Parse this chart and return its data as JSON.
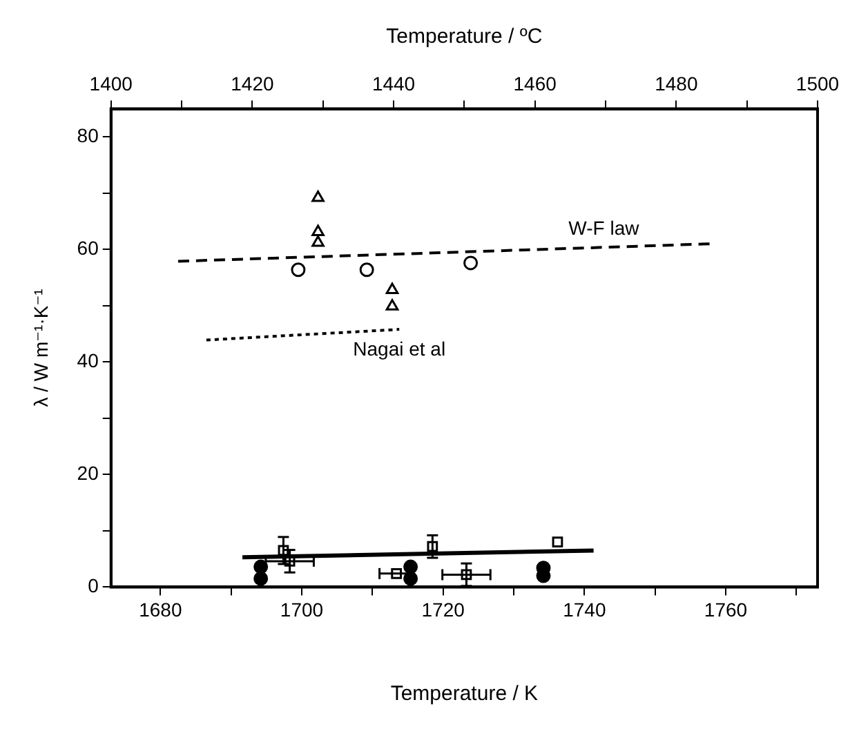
{
  "chart_data": {
    "type": "scatter",
    "xlabel": "Temperature / K",
    "x2label": "Temperature / ºC",
    "ylabel": "λ / W m⁻¹·K⁻¹",
    "xlim": [
      1673,
      1773
    ],
    "xticks": [
      1680,
      {
        "value": 1690,
        "label": null
      },
      1700,
      {
        "value": 1710,
        "label": null
      },
      1720,
      {
        "value": 1730,
        "label": null
      },
      1740,
      {
        "value": 1750,
        "label": null
      },
      1760,
      {
        "value": 1770,
        "label": null
      }
    ],
    "x2lim": [
      1400,
      1500
    ],
    "x2ticks": [
      1400,
      {
        "value": 1410,
        "label": null
      },
      1420,
      {
        "value": 1430,
        "label": null
      },
      1440,
      {
        "value": 1450,
        "label": null
      },
      1460,
      {
        "value": 1470,
        "label": null
      },
      1480,
      {
        "value": 1490,
        "label": null
      },
      1500
    ],
    "ylim": [
      0,
      85
    ],
    "yticks": [
      0,
      {
        "value": 10,
        "label": null
      },
      20,
      {
        "value": 30,
        "label": null
      },
      40,
      {
        "value": 50,
        "label": null
      },
      60,
      {
        "value": 70,
        "label": null
      },
      80
    ],
    "grid": false,
    "legend": false,
    "series": [
      {
        "marker": "triangle",
        "color": "#000000",
        "x": [
          1702.3,
          1702.3,
          1702.3,
          1712.8,
          1712.8
        ],
        "values": [
          69.2,
          63.1,
          61.2,
          52.8,
          49.9
        ]
      },
      {
        "marker": "circle",
        "color": "#000000",
        "x": [
          1699.5,
          1709.2,
          1723.9
        ],
        "values": [
          56.4,
          56.4,
          57.6
        ]
      },
      {
        "type": "line",
        "line_style": "dashed",
        "color": "#000000",
        "x": [
          1682.5,
          1757.8
        ],
        "values": [
          57.9,
          61.0
        ]
      },
      {
        "type": "line",
        "line_style": "dotted",
        "color": "#000000",
        "x": [
          1686.5,
          1713.8
        ],
        "values": [
          43.9,
          45.8
        ]
      },
      {
        "type": "line",
        "line_style": "solid",
        "color": "#000000",
        "x": [
          1691.6,
          1741.3
        ],
        "values": [
          5.3,
          6.5
        ]
      },
      {
        "marker": "square",
        "color": "#000000",
        "x": [
          1697.4,
          1698.3,
          1718.5,
          1713.4,
          1723.3,
          1736.2
        ],
        "values": [
          6.5,
          4.6,
          7.2,
          2.4,
          2.2,
          8.0
        ],
        "errors": [
          2.4,
          2,
          2,
          null,
          2,
          null
        ],
        "xerrors": [
          null,
          3.4,
          null,
          2.4,
          3.4,
          null
        ]
      },
      {
        "marker": "filled-circle",
        "color": "#000000",
        "x": [
          1694.2,
          1694.2,
          1715.4,
          1715.4,
          1734.2,
          1734.2
        ],
        "values": [
          3.6,
          1.5,
          3.6,
          1.5,
          3.4,
          2.0
        ]
      }
    ],
    "annotations": [
      "W-F law",
      "Nagai et al"
    ]
  }
}
